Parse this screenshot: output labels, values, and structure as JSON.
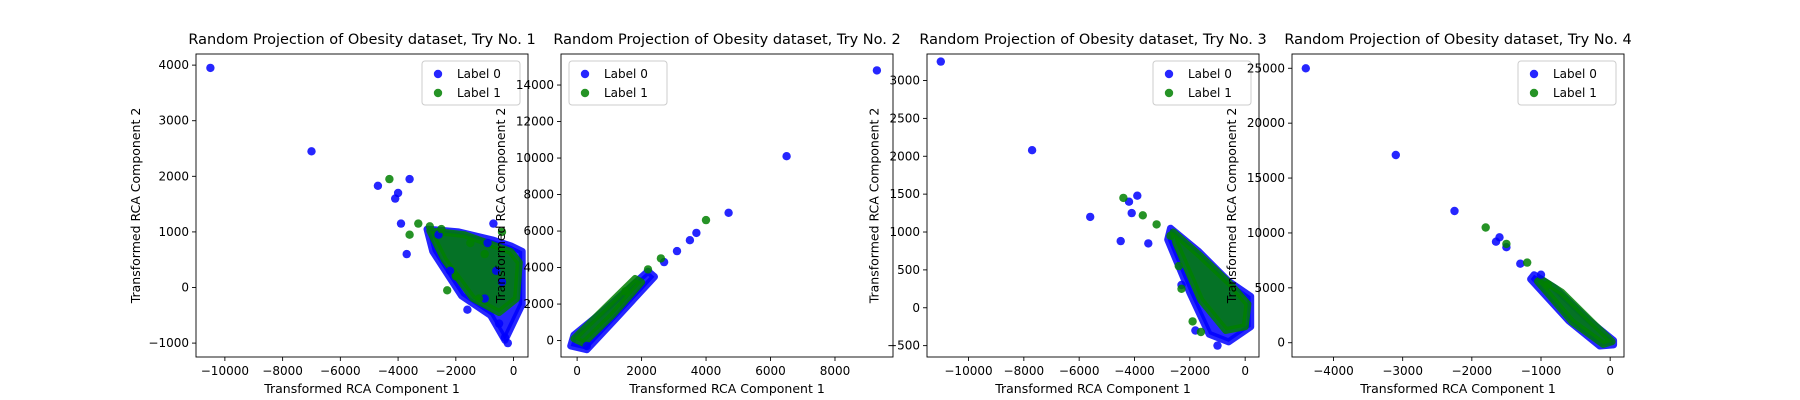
{
  "chart_data": [
    {
      "type": "scatter",
      "title": "Random Projection of Obesity dataset, Try No. 1",
      "xlabel": "Transformed RCA Component 1",
      "ylabel": "Transformed RCA Component 2",
      "xlim": [
        -11000,
        500
      ],
      "ylim": [
        -1250,
        4200
      ],
      "xticks": [
        -10000,
        -8000,
        -6000,
        -4000,
        -2000,
        0
      ],
      "yticks": [
        -1000,
        0,
        1000,
        2000,
        3000,
        4000
      ],
      "legend_position": "upper-right",
      "series": [
        {
          "name": "Label 0",
          "color": "#0000ff",
          "points": [
            [
              -10500,
              3950
            ],
            [
              -7000,
              2450
            ],
            [
              -4700,
              1830
            ],
            [
              -4100,
              1600
            ],
            [
              -4000,
              1700
            ],
            [
              -3600,
              1950
            ],
            [
              -3900,
              1150
            ],
            [
              -3700,
              600
            ],
            [
              -2600,
              950
            ],
            [
              -2200,
              300
            ],
            [
              -1600,
              -400
            ],
            [
              -900,
              800
            ],
            [
              -700,
              1150
            ],
            [
              -500,
              -650
            ],
            [
              -300,
              -900
            ],
            [
              -200,
              -1000
            ],
            [
              -600,
              300
            ],
            [
              -400,
              100
            ],
            [
              -1000,
              -200
            ]
          ]
        },
        {
          "name": "Label 1",
          "color": "#008000",
          "points": [
            [
              -4300,
              1950
            ],
            [
              -3300,
              1150
            ],
            [
              -2900,
              1100
            ],
            [
              -2500,
              1050
            ],
            [
              -3600,
              950
            ],
            [
              -2000,
              200
            ],
            [
              -2300,
              -50
            ],
            [
              -1200,
              -200
            ],
            [
              -1000,
              600
            ],
            [
              -1500,
              800
            ],
            [
              -400,
              1000
            ]
          ]
        }
      ],
      "clusters": [
        {
          "series": 0,
          "polygon": [
            [
              -3000,
              1050
            ],
            [
              -1900,
              1000
            ],
            [
              -700,
              850
            ],
            [
              -100,
              750
            ],
            [
              300,
              650
            ],
            [
              300,
              -300
            ],
            [
              -300,
              -950
            ],
            [
              -800,
              -500
            ],
            [
              -1800,
              -150
            ],
            [
              -2800,
              650
            ]
          ]
        },
        {
          "series": 1,
          "polygon": [
            [
              -2900,
              1020
            ],
            [
              -1700,
              950
            ],
            [
              -800,
              780
            ],
            [
              -100,
              650
            ],
            [
              200,
              450
            ],
            [
              100,
              -200
            ],
            [
              -500,
              -450
            ],
            [
              -1400,
              -200
            ],
            [
              -2400,
              500
            ]
          ]
        }
      ]
    },
    {
      "type": "scatter",
      "title": "Random Projection of Obesity dataset, Try No. 2",
      "xlabel": "Transformed RCA Component 1",
      "ylabel": "Transformed RCA Component 2",
      "xlim": [
        -500,
        9800
      ],
      "ylim": [
        -900,
        15700
      ],
      "xticks": [
        0,
        2000,
        4000,
        6000,
        8000
      ],
      "yticks": [
        0,
        2000,
        4000,
        6000,
        8000,
        10000,
        12000,
        14000
      ],
      "legend_position": "upper-left",
      "series": [
        {
          "name": "Label 0",
          "color": "#0000ff",
          "points": [
            [
              9300,
              14800
            ],
            [
              6500,
              10100
            ],
            [
              4700,
              7000
            ],
            [
              3700,
              5900
            ],
            [
              3500,
              5500
            ],
            [
              3100,
              4900
            ],
            [
              2700,
              4300
            ],
            [
              300,
              -300
            ]
          ]
        },
        {
          "name": "Label 1",
          "color": "#008000",
          "points": [
            [
              4000,
              6600
            ],
            [
              2600,
              4500
            ],
            [
              2200,
              3900
            ],
            [
              1500,
              2700
            ]
          ]
        }
      ],
      "clusters": [
        {
          "series": 0,
          "polygon": [
            [
              -200,
              -300
            ],
            [
              300,
              -500
            ],
            [
              1200,
              1200
            ],
            [
              2400,
              3500
            ],
            [
              2200,
              3800
            ],
            [
              800,
              1600
            ],
            [
              -100,
              300
            ]
          ]
        },
        {
          "series": 1,
          "polygon": [
            [
              -100,
              100
            ],
            [
              200,
              -150
            ],
            [
              1100,
              1400
            ],
            [
              2000,
              3200
            ],
            [
              1800,
              3400
            ],
            [
              700,
              1500
            ]
          ]
        }
      ]
    },
    {
      "type": "scatter",
      "title": "Random Projection of Obesity dataset, Try No. 3",
      "xlabel": "Transformed RCA Component 1",
      "ylabel": "Transformed RCA Component 2",
      "xlim": [
        -11500,
        500
      ],
      "ylim": [
        -650,
        3350
      ],
      "xticks": [
        -10000,
        -8000,
        -6000,
        -4000,
        -2000,
        0
      ],
      "yticks": [
        -500,
        0,
        500,
        1000,
        1500,
        2000,
        2500,
        3000
      ],
      "legend_position": "upper-right",
      "series": [
        {
          "name": "Label 0",
          "color": "#0000ff",
          "points": [
            [
              -11000,
              3250
            ],
            [
              -7700,
              2080
            ],
            [
              -5600,
              1200
            ],
            [
              -4200,
              1400
            ],
            [
              -3900,
              1480
            ],
            [
              -4100,
              1250
            ],
            [
              -3500,
              850
            ],
            [
              -4500,
              880
            ],
            [
              -2300,
              300
            ],
            [
              -1800,
              -300
            ],
            [
              -1000,
              -500
            ]
          ]
        },
        {
          "name": "Label 1",
          "color": "#008000",
          "points": [
            [
              -4400,
              1450
            ],
            [
              -3700,
              1220
            ],
            [
              -3200,
              1100
            ],
            [
              -2400,
              550
            ],
            [
              -2300,
              250
            ],
            [
              -1900,
              -180
            ],
            [
              -1600,
              -320
            ],
            [
              -2700,
              950
            ]
          ]
        }
      ],
      "clusters": [
        {
          "series": 0,
          "polygon": [
            [
              -2700,
              1050
            ],
            [
              -1700,
              750
            ],
            [
              -600,
              350
            ],
            [
              200,
              150
            ],
            [
              200,
              -250
            ],
            [
              -600,
              -450
            ],
            [
              -1300,
              -350
            ],
            [
              -2000,
              200
            ],
            [
              -2800,
              900
            ]
          ]
        },
        {
          "series": 1,
          "polygon": [
            [
              -2600,
              1000
            ],
            [
              -1600,
              680
            ],
            [
              -500,
              300
            ],
            [
              100,
              50
            ],
            [
              0,
              -250
            ],
            [
              -700,
              -300
            ],
            [
              -1600,
              100
            ],
            [
              -2500,
              850
            ]
          ]
        }
      ]
    },
    {
      "type": "scatter",
      "title": "Random Projection of Obesity dataset, Try No. 4",
      "xlabel": "Transformed RCA Component 1",
      "ylabel": "Transformed RCA Component 2",
      "xlim": [
        -4600,
        200
      ],
      "ylim": [
        -1300,
        26300
      ],
      "xticks": [
        -4000,
        -3000,
        -2000,
        -1000,
        0
      ],
      "yticks": [
        0,
        5000,
        10000,
        15000,
        20000,
        25000
      ],
      "legend_position": "upper-right",
      "series": [
        {
          "name": "Label 0",
          "color": "#0000ff",
          "points": [
            [
              -4400,
              25000
            ],
            [
              -3100,
              17100
            ],
            [
              -2250,
              12000
            ],
            [
              -1600,
              9600
            ],
            [
              -1650,
              9200
            ],
            [
              -1500,
              8700
            ],
            [
              -1300,
              7200
            ],
            [
              -1000,
              6200
            ]
          ]
        },
        {
          "name": "Label 1",
          "color": "#008000",
          "points": [
            [
              -1800,
              10500
            ],
            [
              -1200,
              7300
            ],
            [
              -900,
              5300
            ],
            [
              -1500,
              9000
            ]
          ]
        }
      ],
      "clusters": [
        {
          "series": 0,
          "polygon": [
            [
              -1100,
              6200
            ],
            [
              -800,
              5000
            ],
            [
              -300,
              2000
            ],
            [
              50,
              200
            ],
            [
              50,
              -200
            ],
            [
              -150,
              -300
            ],
            [
              -600,
              2000
            ],
            [
              -1150,
              5800
            ]
          ]
        },
        {
          "series": 1,
          "polygon": [
            [
              -1000,
              5800
            ],
            [
              -700,
              4600
            ],
            [
              -250,
              1800
            ],
            [
              30,
              100
            ],
            [
              -100,
              -150
            ],
            [
              -550,
              1900
            ],
            [
              -1050,
              5600
            ]
          ]
        }
      ]
    }
  ]
}
